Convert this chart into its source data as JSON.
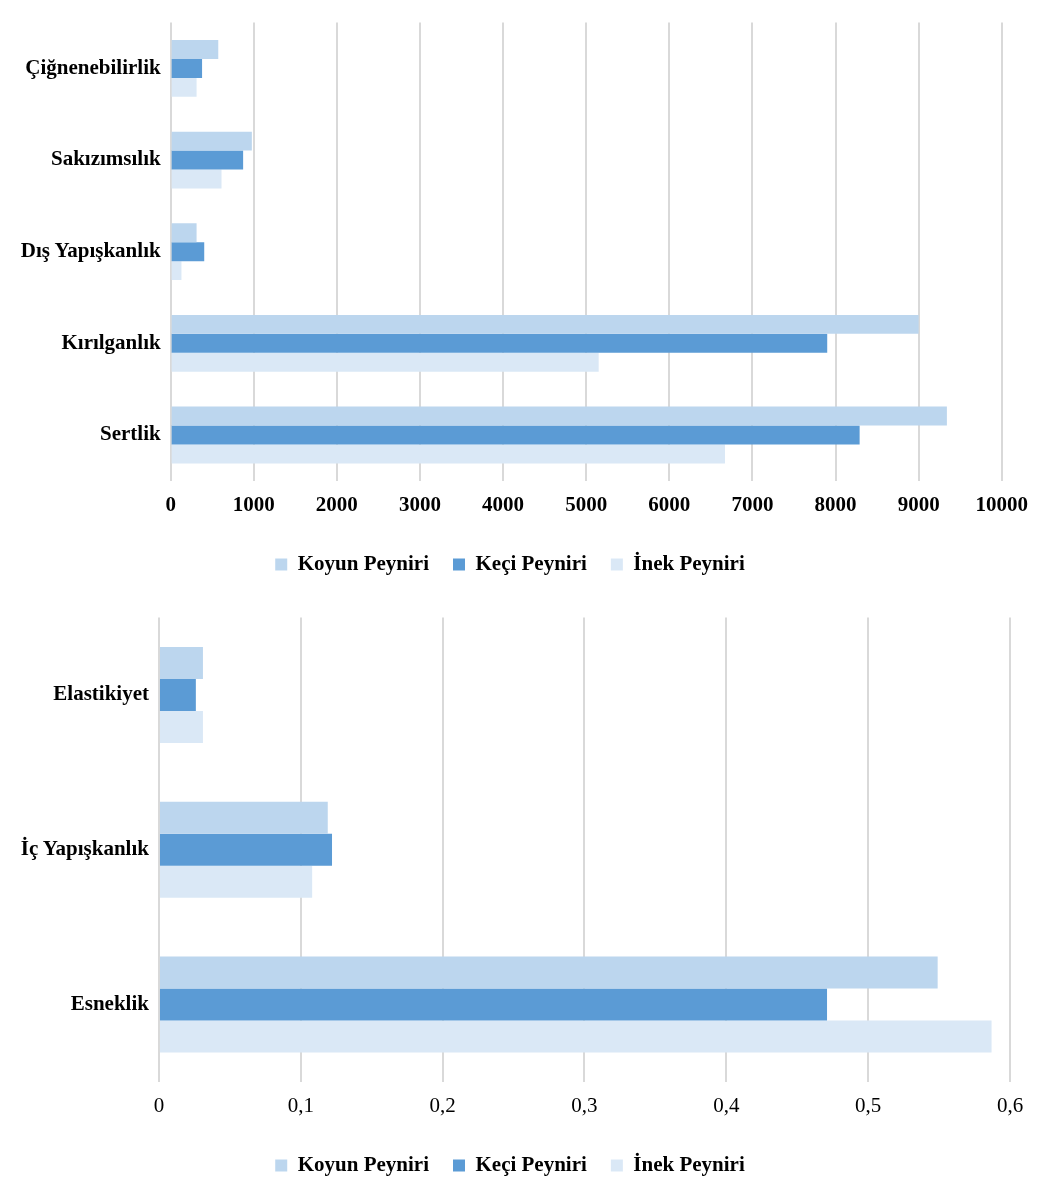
{
  "chart_data": [
    {
      "type": "bar",
      "orientation": "horizontal",
      "categories": [
        "Çiğnenebilirlik",
        "Sakızımsılık",
        "Dış Yapışkanlık",
        "Kırılganlık",
        "Sertlik"
      ],
      "series": [
        {
          "name": "Koyun Peyniri",
          "color": "#bcd6ee",
          "values": [
            573,
            977,
            312,
            9000,
            9340
          ]
        },
        {
          "name": "Keçi Peyniri",
          "color": "#5b9bd5",
          "values": [
            378,
            872,
            404,
            7900,
            8290
          ]
        },
        {
          "name": "İnek Peyniri",
          "color": "#dae8f6",
          "values": [
            312,
            612,
            130,
            5150,
            6670
          ]
        }
      ],
      "xlim": [
        0,
        10000
      ],
      "xticks": [
        0,
        1000,
        2000,
        3000,
        4000,
        5000,
        6000,
        7000,
        8000,
        9000,
        10000
      ],
      "grid": "x",
      "legend": "bottom"
    },
    {
      "type": "bar",
      "orientation": "horizontal",
      "categories": [
        "Elastikiyet",
        "İç Yapışkanlık",
        "Esneklik"
      ],
      "series": [
        {
          "name": "Koyun Peyniri",
          "color": "#bcd6ee",
          "values": [
            0.031,
            0.119,
            0.549
          ]
        },
        {
          "name": "Keçi Peyniri",
          "color": "#5b9bd5",
          "values": [
            0.026,
            0.122,
            0.471
          ]
        },
        {
          "name": "İnek Peyniri",
          "color": "#dae8f6",
          "values": [
            0.031,
            0.108,
            0.587
          ]
        }
      ],
      "xlim": [
        0,
        0.6
      ],
      "xticks": [
        0,
        {
          "value": 0.1,
          "label": "0,1"
        },
        {
          "value": 0.2,
          "label": "0,2"
        },
        {
          "value": 0.3,
          "label": "0,3"
        },
        {
          "value": 0.4,
          "label": "0,4"
        },
        {
          "value": 0.5,
          "label": "0,5"
        },
        {
          "value": 0.6,
          "label": "0,6"
        }
      ],
      "grid": "x",
      "legend": "bottom"
    }
  ]
}
